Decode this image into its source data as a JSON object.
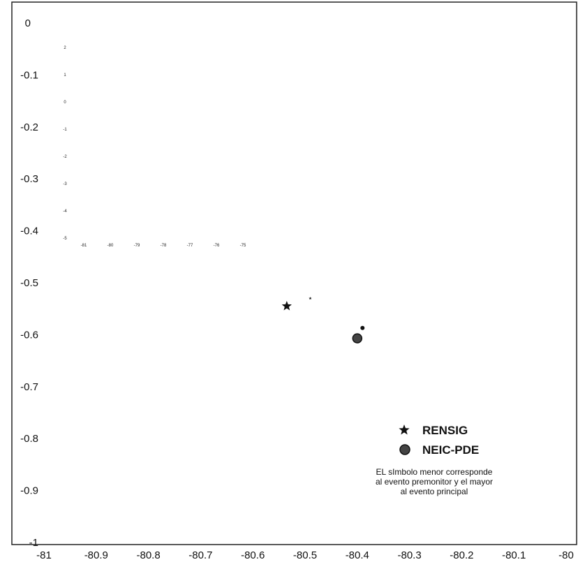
{
  "chart_data": {
    "type": "scatter",
    "title": "",
    "xlabel": "",
    "ylabel": "",
    "xlim": [
      -81,
      -80
    ],
    "ylim": [
      -1,
      0
    ],
    "grid": false,
    "x_ticks": [
      "-81",
      "-80.9",
      "-80.8",
      "-80.7",
      "-80.6",
      "-80.5",
      "-80.4",
      "-80.3",
      "-80.2",
      "-80.1",
      "-80"
    ],
    "y_ticks": [
      "0",
      "-0.1",
      "-0.2",
      "-0.3",
      "-0.4",
      "-0.5",
      "-0.6",
      "-0.7",
      "-0.8",
      "-0.9",
      "-1"
    ],
    "series": [
      {
        "name": "RENSIG",
        "marker": "star",
        "color": "#111111",
        "points": [
          {
            "x": -80.49,
            "y": -0.53,
            "event": "premonitor"
          },
          {
            "x": -80.535,
            "y": -0.545,
            "event": "principal"
          }
        ]
      },
      {
        "name": "NEIC-PDE",
        "marker": "circle",
        "color": "#111111",
        "points": [
          {
            "x": -80.39,
            "y": -0.587,
            "event": "premonitor"
          },
          {
            "x": -80.4,
            "y": -0.607,
            "event": "principal"
          }
        ]
      }
    ],
    "legend": {
      "position": "bottom-right",
      "items": [
        "RENSIG",
        "NEIC-PDE"
      ],
      "note": [
        "EL sImbolo menor corresponde",
        "al evento premonitor y el mayor",
        "al evento principal"
      ]
    },
    "inset": {
      "x_ticks": [
        "-81",
        "-80",
        "-79",
        "-78",
        "-77",
        "-76",
        "-75"
      ],
      "y_ticks": [
        "2",
        "1",
        "0",
        "-1",
        "-2",
        "-3",
        "-4",
        "-5"
      ]
    }
  }
}
